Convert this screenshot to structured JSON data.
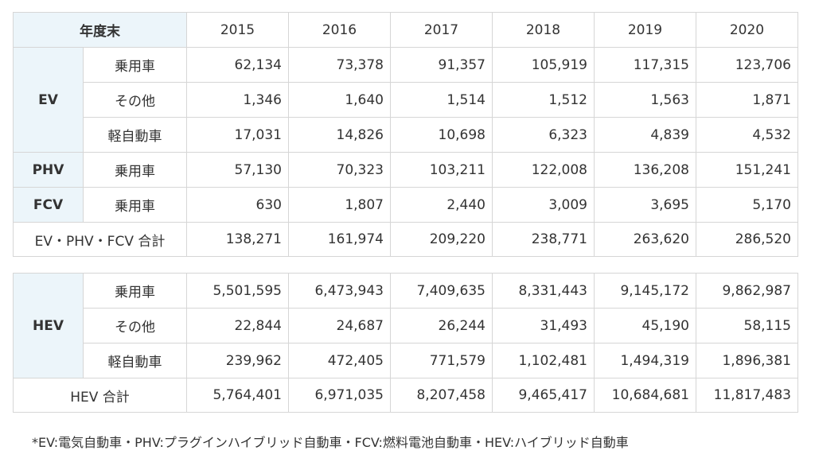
{
  "table_top": {
    "header_label": "年度末",
    "years": [
      "2015",
      "2016",
      "2017",
      "2018",
      "2019",
      "2020"
    ],
    "groups": [
      {
        "label": "EV",
        "rows": [
          {
            "sub": "乗用車",
            "values": [
              "62,134",
              "73,378",
              "91,357",
              "105,919",
              "117,315",
              "123,706"
            ]
          },
          {
            "sub": "その他",
            "values": [
              "1,346",
              "1,640",
              "1,514",
              "1,512",
              "1,563",
              "1,871"
            ]
          },
          {
            "sub": "軽自動車",
            "values": [
              "17,031",
              "14,826",
              "10,698",
              "6,323",
              "4,839",
              "4,532"
            ]
          }
        ]
      },
      {
        "label": "PHV",
        "rows": [
          {
            "sub": "乗用車",
            "values": [
              "57,130",
              "70,323",
              "103,211",
              "122,008",
              "136,208",
              "151,241"
            ]
          }
        ]
      },
      {
        "label": "FCV",
        "rows": [
          {
            "sub": "乗用車",
            "values": [
              "630",
              "1,807",
              "2,440",
              "3,009",
              "3,695",
              "5,170"
            ]
          }
        ]
      }
    ],
    "total": {
      "label": "EV・PHV・FCV 合計",
      "values": [
        "138,271",
        "161,974",
        "209,220",
        "238,771",
        "263,620",
        "286,520"
      ]
    }
  },
  "table_bottom": {
    "groups": [
      {
        "label": "HEV",
        "rows": [
          {
            "sub": "乗用車",
            "values": [
              "5,501,595",
              "6,473,943",
              "7,409,635",
              "8,331,443",
              "9,145,172",
              "9,862,987"
            ]
          },
          {
            "sub": "その他",
            "values": [
              "22,844",
              "24,687",
              "26,244",
              "31,493",
              "45,190",
              "58,115"
            ]
          },
          {
            "sub": "軽自動車",
            "values": [
              "239,962",
              "472,405",
              "771,579",
              "1,102,481",
              "1,494,319",
              "1,896,381"
            ]
          }
        ]
      }
    ],
    "total": {
      "label": "HEV 合計",
      "values": [
        "5,764,401",
        "6,971,035",
        "8,207,458",
        "9,465,417",
        "10,684,681",
        "11,817,483"
      ]
    }
  },
  "footnote": "*EV:電気自動車・PHV:プラグインハイブリッド自動車・FCV:燃料電池自動車・HEV:ハイブリッド自動車",
  "colors": {
    "header_bg": "#ecf5fa",
    "border": "#d6d6d6",
    "text": "#333333"
  }
}
